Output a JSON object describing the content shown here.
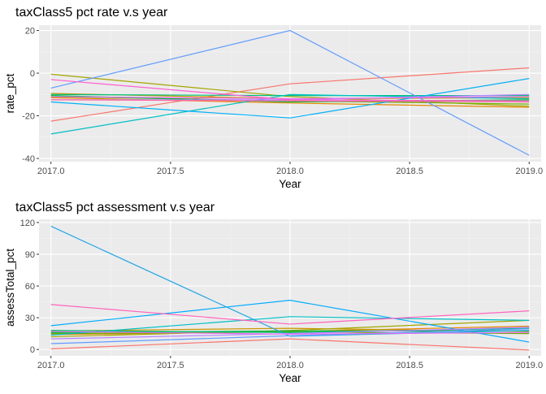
{
  "chart_data": [
    {
      "type": "line",
      "title": "taxClass5 pct rate v.s year",
      "xlabel": "Year",
      "ylabel": "rate_pct",
      "x": [
        2017.0,
        2018.0,
        2019.0
      ],
      "xlim": [
        2016.95,
        2019.05
      ],
      "ylim": [
        -41.5,
        22.5
      ],
      "xticks": [
        2017.0,
        2017.5,
        2018.0,
        2018.5,
        2019.0
      ],
      "xtick_labels": [
        "2017.0",
        "2017.5",
        "2018.0",
        "2018.5",
        "2019.0"
      ],
      "yticks": [
        -40,
        -20,
        0,
        20
      ],
      "ytick_labels": [
        "-40",
        "-20",
        "0",
        "20"
      ],
      "grid": true,
      "legend": "none",
      "series": [
        {
          "color": "#F8766D",
          "values": [
            -22.5,
            -5.0,
            2.5
          ]
        },
        {
          "color": "#E58700",
          "values": [
            -11.5,
            -14.0,
            -16.0
          ]
        },
        {
          "color": "#C99800",
          "values": [
            -9.5,
            -12.0,
            -11.5
          ]
        },
        {
          "color": "#A3A500",
          "values": [
            -0.5,
            -11.0,
            -15.5
          ]
        },
        {
          "color": "#6BB100",
          "values": [
            -11.0,
            -13.0,
            -14.5
          ]
        },
        {
          "color": "#00BA38",
          "values": [
            -10.5,
            -13.5,
            -12.5
          ]
        },
        {
          "color": "#00BF7D",
          "values": [
            -10.0,
            -10.5,
            -10.5
          ]
        },
        {
          "color": "#00BFC4",
          "values": [
            -28.5,
            -10.0,
            -12.0
          ]
        },
        {
          "color": "#00B0F6",
          "values": [
            -13.5,
            -21.0,
            -2.5
          ]
        },
        {
          "color": "#619CFF",
          "values": [
            -7.0,
            20.0,
            -38.5
          ]
        },
        {
          "color": "#B983FF",
          "values": [
            -12.5,
            -12.5,
            -10.0
          ]
        },
        {
          "color": "#E76BF3",
          "values": [
            -11.0,
            -12.0,
            -11.0
          ]
        },
        {
          "color": "#FD61D1",
          "values": [
            -3.0,
            -12.5,
            -13.0
          ]
        },
        {
          "color": "#FF67A4",
          "values": [
            -12.5,
            -13.0,
            -13.5
          ]
        }
      ]
    },
    {
      "type": "line",
      "title": "taxClass5 pct assessment v.s year",
      "xlabel": "Year",
      "ylabel": "assessTotal_pct",
      "x": [
        2017.0,
        2018.0,
        2019.0
      ],
      "xlim": [
        2016.95,
        2019.05
      ],
      "ylim": [
        -6,
        123
      ],
      "xticks": [
        2017.0,
        2017.5,
        2018.0,
        2018.5,
        2019.0
      ],
      "xtick_labels": [
        "2017.0",
        "2017.5",
        "2018.0",
        "2018.5",
        "2019.0"
      ],
      "yticks": [
        0,
        30,
        60,
        90,
        120
      ],
      "ytick_labels": [
        "0",
        "30",
        "60",
        "90",
        "120"
      ],
      "grid": true,
      "legend": "none",
      "series": [
        {
          "color": "#F8766D",
          "values": [
            0.5,
            10.0,
            -0.5
          ]
        },
        {
          "color": "#E58700",
          "values": [
            14.0,
            17.0,
            22.0
          ]
        },
        {
          "color": "#C99800",
          "values": [
            17.5,
            20.0,
            17.0
          ]
        },
        {
          "color": "#A3A500",
          "values": [
            12.0,
            18.0,
            27.5
          ]
        },
        {
          "color": "#6BB100",
          "values": [
            15.0,
            16.5,
            15.0
          ]
        },
        {
          "color": "#00BA38",
          "values": [
            16.0,
            17.5,
            17.5
          ]
        },
        {
          "color": "#00BF7D",
          "values": [
            18.0,
            16.0,
            20.0
          ]
        },
        {
          "color": "#00BFC4",
          "values": [
            13.5,
            31.0,
            27.5
          ]
        },
        {
          "color": "#00ACFC",
          "values": [
            22.5,
            46.5,
            7.0
          ]
        },
        {
          "color": "#1FA8E8",
          "values": [
            116.5,
            12.5,
            18.0
          ]
        },
        {
          "color": "#619CFF",
          "values": [
            5.5,
            13.0,
            19.5
          ]
        },
        {
          "color": "#B983FF",
          "values": [
            10.0,
            15.0,
            21.0
          ]
        },
        {
          "color": "#E76BF3",
          "values": [
            17.0,
            14.5,
            16.0
          ]
        },
        {
          "color": "#FF62BC",
          "values": [
            42.5,
            24.0,
            36.5
          ]
        }
      ]
    }
  ]
}
